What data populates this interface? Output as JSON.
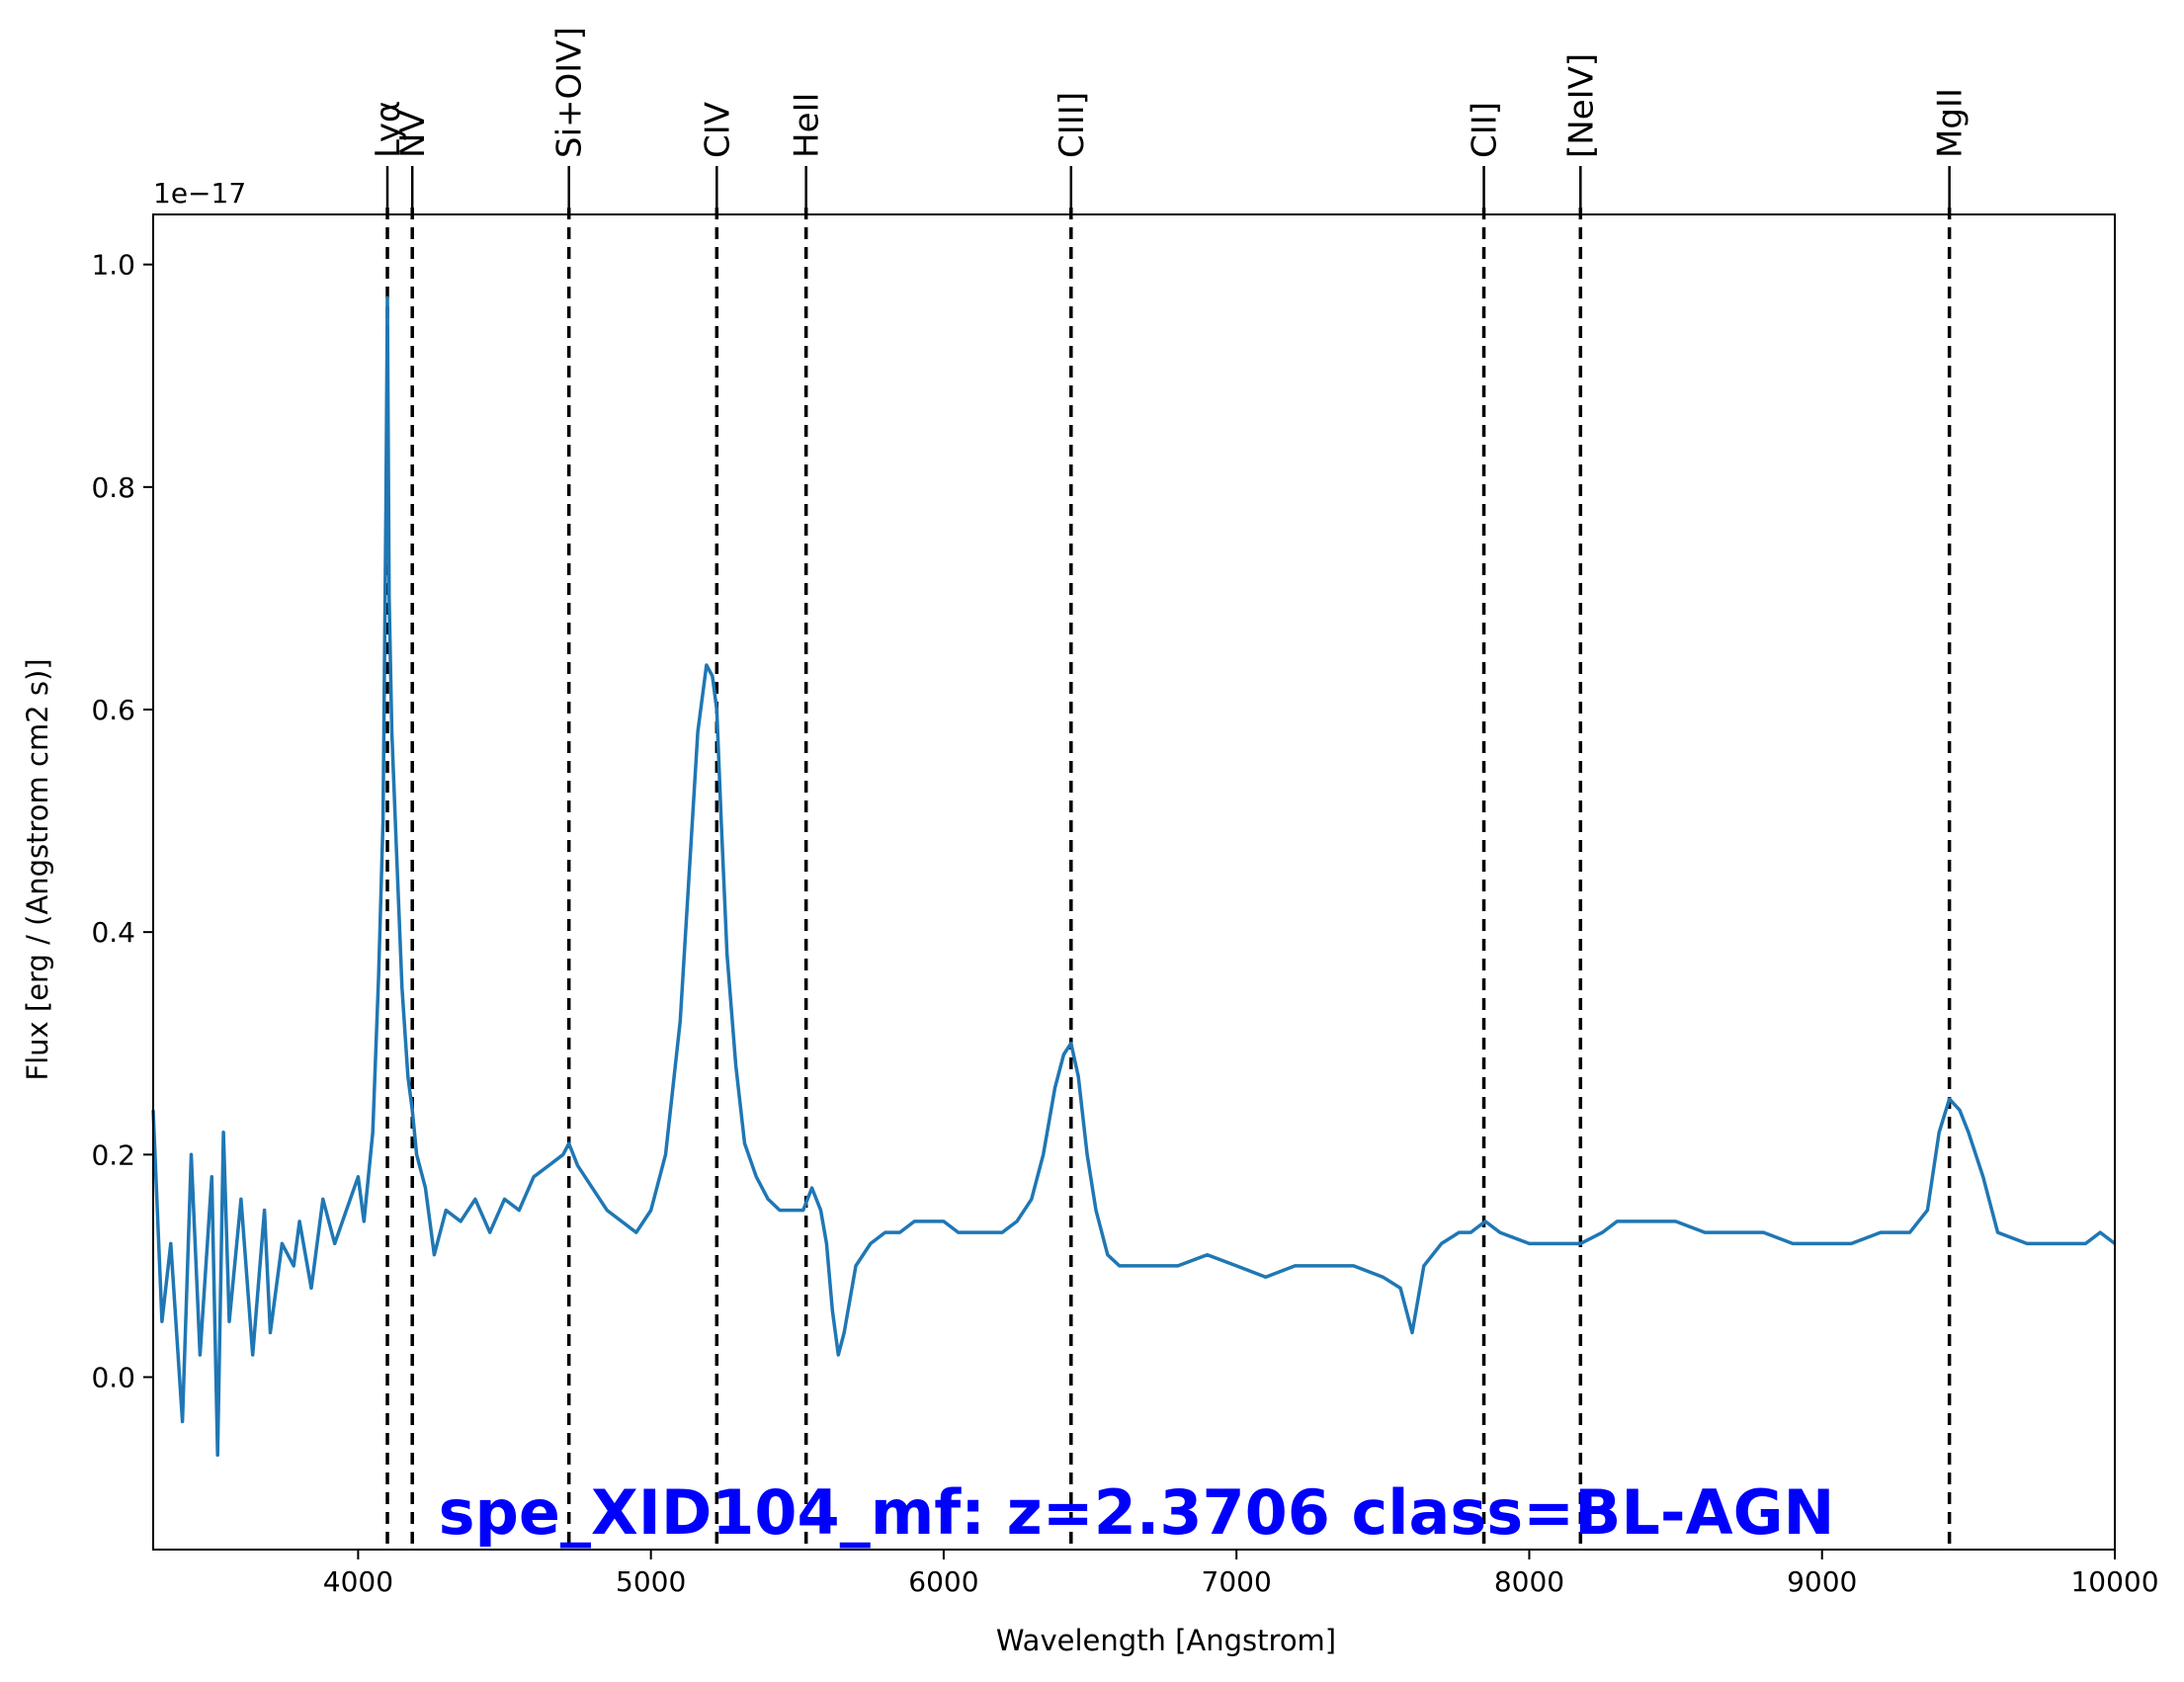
{
  "chart_data": {
    "type": "line",
    "title": "spe_XID104_mf: z=2.3706 class=BL-AGN",
    "title_color": "#0000ff",
    "series_color": "#1f77b4",
    "xlabel": "Wavelength [Angstrom]",
    "ylabel": "Flux [erg / (Angstrom cm2 s)]",
    "y_scale_label": "1e−17",
    "xlim": [
      3300,
      10000
    ],
    "ylim": [
      -0.155,
      1.045
    ],
    "x_ticks": [
      4000,
      5000,
      6000,
      7000,
      8000,
      9000,
      10000
    ],
    "x_tick_labels": [
      "4000",
      "5000",
      "6000",
      "7000",
      "8000",
      "9000",
      "10000"
    ],
    "y_ticks": [
      0.0,
      0.2,
      0.4,
      0.6,
      0.8,
      1.0
    ],
    "y_tick_labels": [
      "0.0",
      "0.2",
      "0.4",
      "0.6",
      "0.8",
      "1.0"
    ],
    "grid": false,
    "emission_lines": [
      {
        "label": "Lyα",
        "x": 4100
      },
      {
        "label": "NV",
        "x": 4185
      },
      {
        "label": "Si+OIV]",
        "x": 4720
      },
      {
        "label": "CIV",
        "x": 5225
      },
      {
        "label": "HeII",
        "x": 5530
      },
      {
        "label": "CIII]",
        "x": 6435
      },
      {
        "label": "CII]",
        "x": 7845
      },
      {
        "label": "[NeIV]",
        "x": 8175
      },
      {
        "label": "MgII",
        "x": 9435
      }
    ],
    "spectrum": {
      "x": [
        3300,
        3330,
        3360,
        3400,
        3430,
        3460,
        3500,
        3520,
        3540,
        3560,
        3600,
        3640,
        3680,
        3700,
        3740,
        3780,
        3800,
        3840,
        3880,
        3920,
        3960,
        4000,
        4020,
        4050,
        4070,
        4085,
        4095,
        4100,
        4106,
        4115,
        4130,
        4150,
        4170,
        4185,
        4200,
        4230,
        4260,
        4300,
        4350,
        4400,
        4450,
        4500,
        4550,
        4600,
        4650,
        4700,
        4720,
        4750,
        4800,
        4850,
        4900,
        4950,
        5000,
        5050,
        5100,
        5130,
        5160,
        5190,
        5210,
        5225,
        5240,
        5260,
        5290,
        5320,
        5360,
        5400,
        5440,
        5480,
        5520,
        5550,
        5580,
        5600,
        5620,
        5640,
        5660,
        5700,
        5750,
        5800,
        5850,
        5900,
        5950,
        6000,
        6050,
        6100,
        6150,
        6200,
        6250,
        6300,
        6340,
        6380,
        6410,
        6435,
        6460,
        6490,
        6520,
        6560,
        6600,
        6650,
        6700,
        6800,
        6900,
        7000,
        7100,
        7200,
        7300,
        7400,
        7500,
        7560,
        7600,
        7640,
        7700,
        7760,
        7800,
        7850,
        7900,
        8000,
        8100,
        8175,
        8250,
        8300,
        8400,
        8500,
        8600,
        8700,
        8800,
        8900,
        9000,
        9100,
        9200,
        9300,
        9360,
        9400,
        9435,
        9470,
        9500,
        9550,
        9600,
        9700,
        9800,
        9900,
        9950,
        10000
      ],
      "y": [
        0.24,
        0.05,
        0.12,
        -0.04,
        0.2,
        0.02,
        0.18,
        -0.07,
        0.22,
        0.05,
        0.16,
        0.02,
        0.15,
        0.04,
        0.12,
        0.1,
        0.14,
        0.08,
        0.16,
        0.12,
        0.15,
        0.18,
        0.14,
        0.22,
        0.36,
        0.5,
        0.78,
        0.97,
        0.7,
        0.58,
        0.48,
        0.35,
        0.27,
        0.24,
        0.2,
        0.17,
        0.11,
        0.15,
        0.14,
        0.16,
        0.13,
        0.16,
        0.15,
        0.18,
        0.19,
        0.2,
        0.21,
        0.19,
        0.17,
        0.15,
        0.14,
        0.13,
        0.15,
        0.2,
        0.32,
        0.45,
        0.58,
        0.64,
        0.63,
        0.6,
        0.5,
        0.38,
        0.28,
        0.21,
        0.18,
        0.16,
        0.15,
        0.15,
        0.15,
        0.17,
        0.15,
        0.12,
        0.06,
        0.02,
        0.04,
        0.1,
        0.12,
        0.13,
        0.13,
        0.14,
        0.14,
        0.14,
        0.13,
        0.13,
        0.13,
        0.13,
        0.14,
        0.16,
        0.2,
        0.26,
        0.29,
        0.3,
        0.27,
        0.2,
        0.15,
        0.11,
        0.1,
        0.1,
        0.1,
        0.1,
        0.11,
        0.1,
        0.09,
        0.1,
        0.1,
        0.1,
        0.09,
        0.08,
        0.04,
        0.1,
        0.12,
        0.13,
        0.13,
        0.14,
        0.13,
        0.12,
        0.12,
        0.12,
        0.13,
        0.14,
        0.14,
        0.14,
        0.13,
        0.13,
        0.13,
        0.12,
        0.12,
        0.12,
        0.13,
        0.13,
        0.15,
        0.22,
        0.25,
        0.24,
        0.22,
        0.18,
        0.13,
        0.12,
        0.12,
        0.12,
        0.13,
        0.12
      ]
    }
  }
}
